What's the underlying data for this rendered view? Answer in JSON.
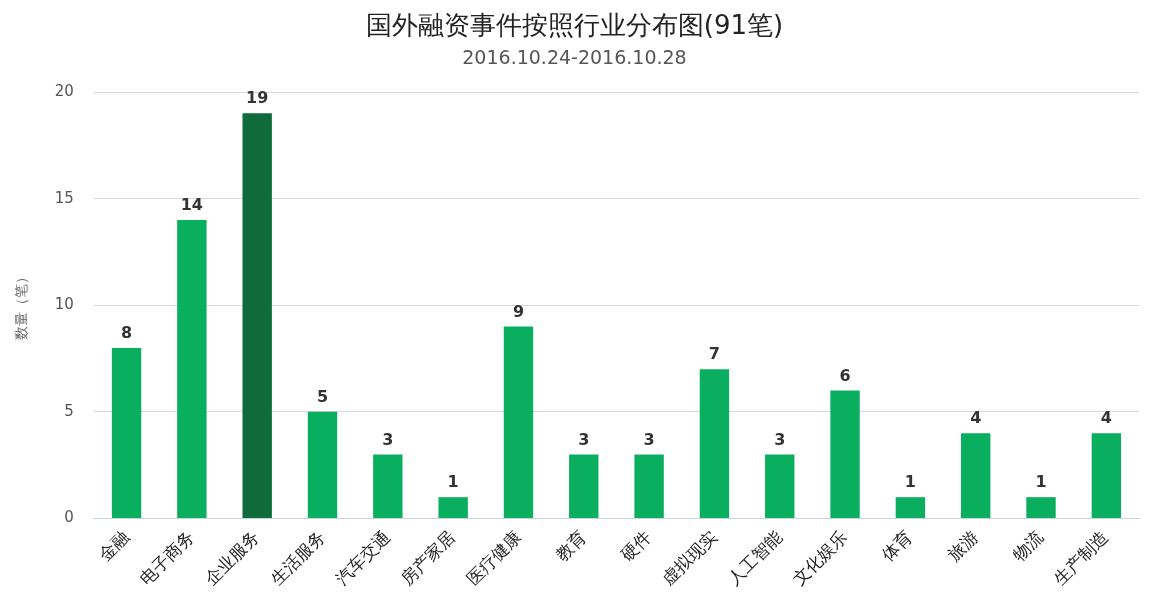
{
  "chart_data": {
    "type": "bar",
    "title": "国外融资事件按照行业分布图(91笔)",
    "subtitle": "2016.10.24-2016.10.28",
    "ylabel": "数量（笔）",
    "categories": [
      "金融",
      "电子商务",
      "企业服务",
      "生活服务",
      "汽车交通",
      "房产家居",
      "医疗健康",
      "教育",
      "硬件",
      "虚拟现实",
      "人工智能",
      "文化娱乐",
      "体育",
      "旅游",
      "物流",
      "生产制造"
    ],
    "values": [
      8,
      14,
      19,
      5,
      3,
      1,
      9,
      3,
      3,
      7,
      3,
      6,
      1,
      4,
      1,
      4
    ],
    "colors": [
      "#0aae5f",
      "#0aae5f",
      "#106b3b",
      "#0aae5f",
      "#0aae5f",
      "#0aae5f",
      "#0aae5f",
      "#0aae5f",
      "#0aae5f",
      "#0aae5f",
      "#0aae5f",
      "#0aae5f",
      "#0aae5f",
      "#0aae5f",
      "#0aae5f",
      "#0aae5f"
    ],
    "ylim": [
      0,
      20
    ],
    "yticks": [
      0,
      5,
      10,
      15,
      20
    ],
    "grid": "y",
    "data_labels": true,
    "legend": false
  }
}
